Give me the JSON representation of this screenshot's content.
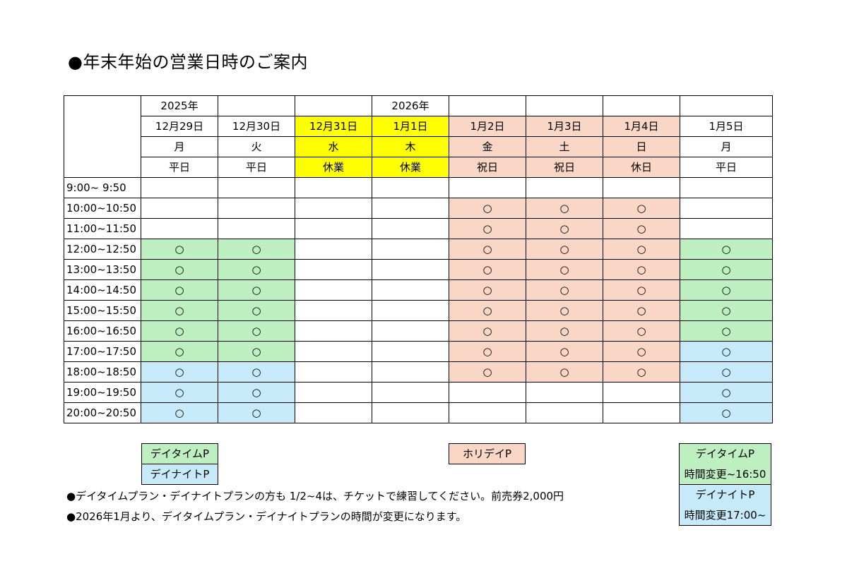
{
  "title": "●年末年始の営業日時のご案内",
  "colors": {
    "closed": "#ffff00",
    "holiday": "#f9d6c6",
    "daytime": "#bdefc0",
    "daynight": "#c6eaf9"
  },
  "header": {
    "years": [
      "2025年",
      "",
      "",
      "2026年",
      "",
      "",
      "",
      ""
    ],
    "dates": [
      "12月29日",
      "12月30日",
      "12月31日",
      "1月1日",
      "1月2日",
      "1月3日",
      "1月4日",
      "1月5日"
    ],
    "weekdays": [
      "月",
      "火",
      "水",
      "木",
      "金",
      "土",
      "日",
      "月"
    ],
    "daytypes": [
      "平日",
      "平日",
      "休業",
      "休業",
      "祝日",
      "祝日",
      "休日",
      "平日"
    ],
    "header_colors": [
      "",
      "",
      "yl",
      "yl",
      "pk",
      "pk",
      "pk",
      ""
    ]
  },
  "rows": [
    {
      "time": "9:00~ 9:50",
      "cells": [
        "",
        "",
        "",
        "",
        "",
        "",
        "",
        ""
      ]
    },
    {
      "time": "10:00~10:50",
      "cells": [
        "",
        "",
        "",
        "",
        "h",
        "h",
        "h",
        ""
      ]
    },
    {
      "time": "11:00~11:50",
      "cells": [
        "",
        "",
        "",
        "",
        "h",
        "h",
        "h",
        ""
      ]
    },
    {
      "time": "12:00~12:50",
      "cells": [
        "d",
        "d",
        "",
        "",
        "h",
        "h",
        "h",
        "d"
      ]
    },
    {
      "time": "13:00~13:50",
      "cells": [
        "d",
        "d",
        "",
        "",
        "h",
        "h",
        "h",
        "d"
      ]
    },
    {
      "time": "14:00~14:50",
      "cells": [
        "d",
        "d",
        "",
        "",
        "h",
        "h",
        "h",
        "d"
      ]
    },
    {
      "time": "15:00~15:50",
      "cells": [
        "d",
        "d",
        "",
        "",
        "h",
        "h",
        "h",
        "d"
      ]
    },
    {
      "time": "16:00~16:50",
      "cells": [
        "d",
        "d",
        "",
        "",
        "h",
        "h",
        "h",
        "d"
      ]
    },
    {
      "time": "17:00~17:50",
      "cells": [
        "d",
        "d",
        "",
        "",
        "h",
        "h",
        "h",
        "n"
      ]
    },
    {
      "time": "18:00~18:50",
      "cells": [
        "n",
        "n",
        "",
        "",
        "h",
        "h",
        "h",
        "n"
      ]
    },
    {
      "time": "19:00~19:50",
      "cells": [
        "n",
        "n",
        "",
        "",
        "",
        "",
        "",
        "n"
      ]
    },
    {
      "time": "20:00~20:50",
      "cells": [
        "n",
        "n",
        "",
        "",
        "",
        "",
        "",
        "n"
      ]
    }
  ],
  "mark": "○",
  "legend": {
    "daytime": "デイタイムP",
    "daynight": "デイナイトP",
    "holiday": "ホリデイP",
    "daytime_new": "デイタイムP",
    "daytime_new_time": "時間変更~16:50",
    "daynight_new": "デイナイトP",
    "daynight_new_time": "時間変更17:00~"
  },
  "notes": [
    "●デイタイムプラン・デイナイトプランの方も 1/2~4は、チケットで練習してください。前売券2,000円",
    "●2026年1月より、デイタイムプラン・デイナイトプランの時間が変更になります。"
  ]
}
